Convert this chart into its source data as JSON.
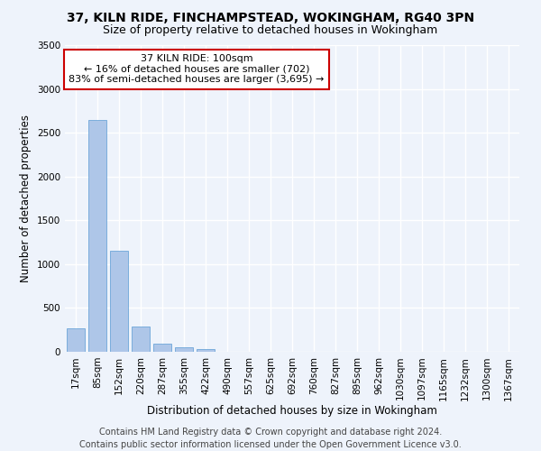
{
  "title": "37, KILN RIDE, FINCHAMPSTEAD, WOKINGHAM, RG40 3PN",
  "subtitle": "Size of property relative to detached houses in Wokingham",
  "xlabel": "Distribution of detached houses by size in Wokingham",
  "ylabel": "Number of detached properties",
  "categories": [
    "17sqm",
    "85sqm",
    "152sqm",
    "220sqm",
    "287sqm",
    "355sqm",
    "422sqm",
    "490sqm",
    "557sqm",
    "625sqm",
    "692sqm",
    "760sqm",
    "827sqm",
    "895sqm",
    "962sqm",
    "1030sqm",
    "1097sqm",
    "1165sqm",
    "1232sqm",
    "1300sqm",
    "1367sqm"
  ],
  "values": [
    270,
    2650,
    1150,
    290,
    90,
    50,
    35,
    0,
    0,
    0,
    0,
    0,
    0,
    0,
    0,
    0,
    0,
    0,
    0,
    0,
    0
  ],
  "bar_color": "#aec6e8",
  "bar_edge_color": "#5a9bd4",
  "ylim": [
    0,
    3500
  ],
  "yticks": [
    0,
    500,
    1000,
    1500,
    2000,
    2500,
    3000,
    3500
  ],
  "annotation_text": "37 KILN RIDE: 100sqm\n← 16% of detached houses are smaller (702)\n83% of semi-detached houses are larger (3,695) →",
  "annotation_box_color": "#ffffff",
  "annotation_box_edge_color": "#cc0000",
  "footer_line1": "Contains HM Land Registry data © Crown copyright and database right 2024.",
  "footer_line2": "Contains public sector information licensed under the Open Government Licence v3.0.",
  "background_color": "#eef3fb",
  "grid_color": "#ffffff",
  "title_fontsize": 10,
  "subtitle_fontsize": 9,
  "tick_fontsize": 7.5,
  "ylabel_fontsize": 8.5,
  "xlabel_fontsize": 8.5,
  "annotation_fontsize": 8,
  "footer_fontsize": 7
}
